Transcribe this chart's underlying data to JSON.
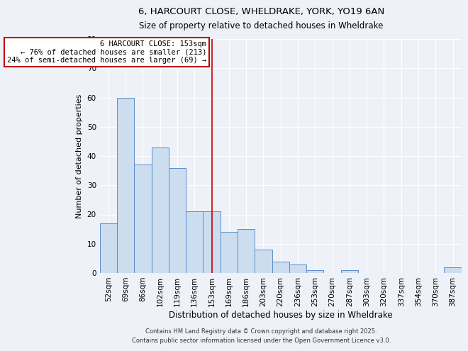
{
  "title": "6, HARCOURT CLOSE, WHELDRAKE, YORK, YO19 6AN",
  "subtitle": "Size of property relative to detached houses in Wheldrake",
  "xlabel": "Distribution of detached houses by size in Wheldrake",
  "ylabel": "Number of detached properties",
  "bar_labels": [
    "52sqm",
    "69sqm",
    "86sqm",
    "102sqm",
    "119sqm",
    "136sqm",
    "153sqm",
    "169sqm",
    "186sqm",
    "203sqm",
    "220sqm",
    "236sqm",
    "253sqm",
    "270sqm",
    "287sqm",
    "303sqm",
    "320sqm",
    "337sqm",
    "354sqm",
    "370sqm",
    "387sqm"
  ],
  "bar_values": [
    17,
    60,
    37,
    43,
    36,
    21,
    21,
    14,
    15,
    8,
    4,
    3,
    1,
    0,
    1,
    0,
    0,
    0,
    0,
    0,
    2
  ],
  "bar_color": "#ccddf0",
  "bar_edge_color": "#5b8dc8",
  "vline_x_index": 6,
  "vline_color": "#c00000",
  "vline_label": "6 HARCOURT CLOSE: 153sqm",
  "annotation_line1": "← 76% of detached houses are smaller (213)",
  "annotation_line2": "24% of semi-detached houses are larger (69) →",
  "box_facecolor": "white",
  "box_edgecolor": "#c00000",
  "ylim": [
    0,
    80
  ],
  "yticks": [
    0,
    10,
    20,
    30,
    40,
    50,
    60,
    70,
    80
  ],
  "footer1": "Contains HM Land Registry data © Crown copyright and database right 2025.",
  "footer2": "Contains public sector information licensed under the Open Government Licence v3.0.",
  "bg_color": "#eef2f8",
  "grid_color": "#ffffff",
  "title_fontsize": 9.5,
  "subtitle_fontsize": 8.5,
  "tick_fontsize": 7.5,
  "ylabel_fontsize": 8,
  "xlabel_fontsize": 8.5,
  "footer_fontsize": 6,
  "annot_fontsize": 7.5
}
